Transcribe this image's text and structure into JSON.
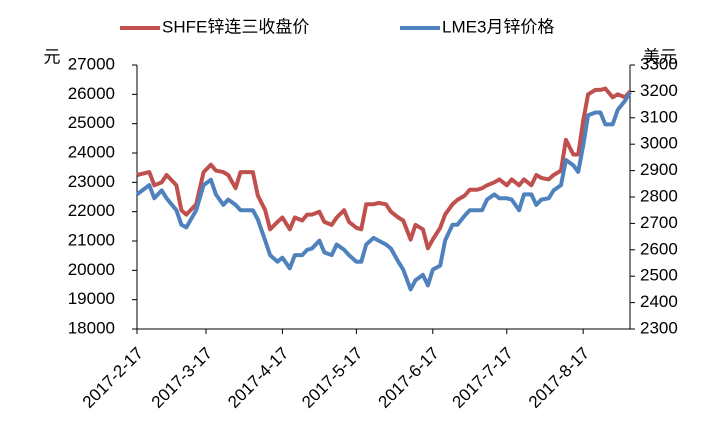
{
  "chart_data": {
    "type": "line",
    "y_label": "元",
    "y2_label": "美元",
    "x": [
      "2017-2-17",
      "2017-2-22",
      "2017-2-24",
      "2017-2-27",
      "2017-3-1",
      "2017-3-5",
      "2017-3-7",
      "2017-3-9",
      "2017-3-13",
      "2017-3-16",
      "2017-3-19",
      "2017-3-21",
      "2017-3-24",
      "2017-3-26",
      "2017-3-29",
      "2017-3-31",
      "2017-4-2",
      "2017-4-5",
      "2017-4-7",
      "2017-4-10",
      "2017-4-12",
      "2017-4-15",
      "2017-4-17",
      "2017-4-20",
      "2017-4-22",
      "2017-4-25",
      "2017-4-27",
      "2017-4-29",
      "2017-5-2",
      "2017-5-4",
      "2017-5-7",
      "2017-5-9",
      "2017-5-12",
      "2017-5-14",
      "2017-5-17",
      "2017-5-19",
      "2017-5-21",
      "2017-5-24",
      "2017-5-26",
      "2017-5-29",
      "2017-5-31",
      "2017-6-3",
      "2017-6-5",
      "2017-6-8",
      "2017-6-10",
      "2017-6-13",
      "2017-6-15",
      "2017-6-17",
      "2017-6-20",
      "2017-6-22",
      "2017-6-25",
      "2017-6-27",
      "2017-6-30",
      "2017-7-2",
      "2017-7-5",
      "2017-7-7",
      "2017-7-9",
      "2017-7-12",
      "2017-7-14",
      "2017-7-17",
      "2017-7-19",
      "2017-7-22",
      "2017-7-24",
      "2017-7-27",
      "2017-7-29",
      "2017-7-31",
      "2017-8-3",
      "2017-8-5",
      "2017-8-8",
      "2017-8-10",
      "2017-8-13",
      "2017-8-15",
      "2017-8-17",
      "2017-8-19",
      "2017-8-22",
      "2017-8-24",
      "2017-8-26",
      "2017-8-29",
      "2017-8-31",
      "2017-9-3",
      "2017-9-5"
    ],
    "xlim": [
      "2017-2-17",
      "2017-9-5"
    ],
    "xticks": [
      "2017-2-17",
      "2017-3-17",
      "2017-4-17",
      "2017-5-17",
      "2017-6-17",
      "2017-7-17",
      "2017-8-17"
    ],
    "ylim": [
      18000,
      27000
    ],
    "yticks": [
      18000,
      19000,
      20000,
      21000,
      22000,
      23000,
      24000,
      25000,
      26000,
      27000
    ],
    "y2lim": [
      2300,
      3300
    ],
    "y2ticks": [
      2300,
      2400,
      2500,
      2600,
      2700,
      2800,
      2900,
      3000,
      3100,
      3200,
      3300
    ],
    "legend": "top",
    "series": [
      {
        "name": "SHFE锌连三收盘价",
        "color": "#c0504d",
        "values": [
          23250,
          23350,
          22900,
          23000,
          23250,
          22900,
          22050,
          21900,
          22250,
          23350,
          23600,
          23400,
          23350,
          23250,
          22800,
          23350,
          23350,
          23350,
          22550,
          22050,
          21400,
          21650,
          21800,
          21400,
          21800,
          21700,
          21900,
          21900,
          22000,
          21650,
          21550,
          21800,
          22050,
          21650,
          21450,
          21400,
          22250,
          22250,
          22300,
          22250,
          22000,
          21800,
          21700,
          21050,
          21550,
          21400,
          20750,
          21050,
          21450,
          21900,
          22250,
          22400,
          22550,
          22750,
          22750,
          22800,
          22900,
          23000,
          23100,
          22900,
          23100,
          22900,
          23100,
          22900,
          23250,
          23150,
          23100,
          23250,
          23400,
          24450,
          23950,
          23950,
          25100,
          26000,
          26150,
          26150,
          26200,
          25900,
          26000,
          25900,
          26100
        ]
      },
      {
        "name": "LME3月锌价格",
        "color": "#4f81bd",
        "axis": "y2",
        "values": [
          2810,
          2845,
          2795,
          2825,
          2795,
          2750,
          2695,
          2685,
          2750,
          2845,
          2865,
          2810,
          2770,
          2790,
          2770,
          2750,
          2750,
          2750,
          2715,
          2635,
          2580,
          2555,
          2570,
          2530,
          2580,
          2580,
          2600,
          2605,
          2635,
          2590,
          2580,
          2620,
          2600,
          2580,
          2555,
          2555,
          2620,
          2645,
          2635,
          2620,
          2605,
          2555,
          2525,
          2450,
          2485,
          2505,
          2465,
          2525,
          2540,
          2635,
          2695,
          2695,
          2730,
          2750,
          2750,
          2750,
          2790,
          2810,
          2795,
          2795,
          2790,
          2750,
          2810,
          2810,
          2770,
          2790,
          2795,
          2825,
          2845,
          2940,
          2920,
          2895,
          2995,
          3110,
          3120,
          3120,
          3075,
          3075,
          3130,
          3165,
          3195
        ]
      }
    ]
  }
}
